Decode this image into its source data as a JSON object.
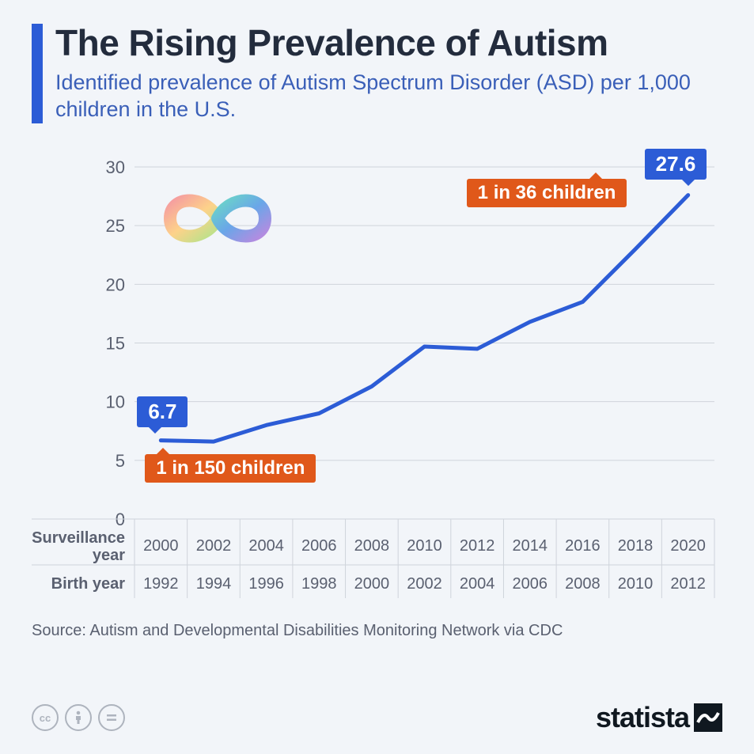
{
  "colors": {
    "background": "#f2f5f9",
    "title": "#232c3d",
    "subtitle": "#3a5fb8",
    "accent_bar": "#2c5cd6",
    "line": "#2c5cd6",
    "callout_blue": "#2c5cd6",
    "callout_orange": "#e0581a",
    "grid": "#cfd4db",
    "axis_text": "#5a6070",
    "source_text": "#5a6070",
    "logo": "#101820",
    "cc_icons": "#aeb4be"
  },
  "title": "The Rising Prevalence of Autism",
  "subtitle": "Identified prevalence of Autism Spectrum Disorder (ASD) per 1,000 children in the U.S.",
  "chart": {
    "type": "line",
    "xlabels_row1_title": "Surveillance year",
    "xlabels_row2_title": "Birth year",
    "surveillance_years": [
      "2000",
      "2002",
      "2004",
      "2006",
      "2008",
      "2010",
      "2012",
      "2014",
      "2016",
      "2018",
      "2020"
    ],
    "birth_years": [
      "1992",
      "1994",
      "1996",
      "1998",
      "2000",
      "2002",
      "2004",
      "2006",
      "2008",
      "2010",
      "2012"
    ],
    "values": [
      6.7,
      6.6,
      8.0,
      9.0,
      11.3,
      14.7,
      14.5,
      16.8,
      18.5,
      23.0,
      27.6
    ],
    "yaxis": {
      "min": 0,
      "max": 30,
      "step": 5,
      "label_fontsize": 22
    },
    "xaxis": {
      "label_fontsize": 20,
      "title_fontsize": 20
    },
    "line_width": 5,
    "plot_bg": "#ffffff"
  },
  "callouts": {
    "start_value": "6.7",
    "start_ratio": "1 in 150 children",
    "end_value": "27.6",
    "end_ratio": "1 in 36 children"
  },
  "source": "Source: Autism and Developmental Disabilities Monitoring Network via CDC",
  "footer": {
    "cc_labels": [
      "cc",
      "by",
      "nd"
    ],
    "logo_text": "statista"
  },
  "infinity_icon": {
    "position": "upper-left of plot",
    "colors": [
      "#f59ca0",
      "#fdd28a",
      "#b3e38a",
      "#6bd6c8",
      "#6aa6e8",
      "#b88ae0"
    ]
  }
}
